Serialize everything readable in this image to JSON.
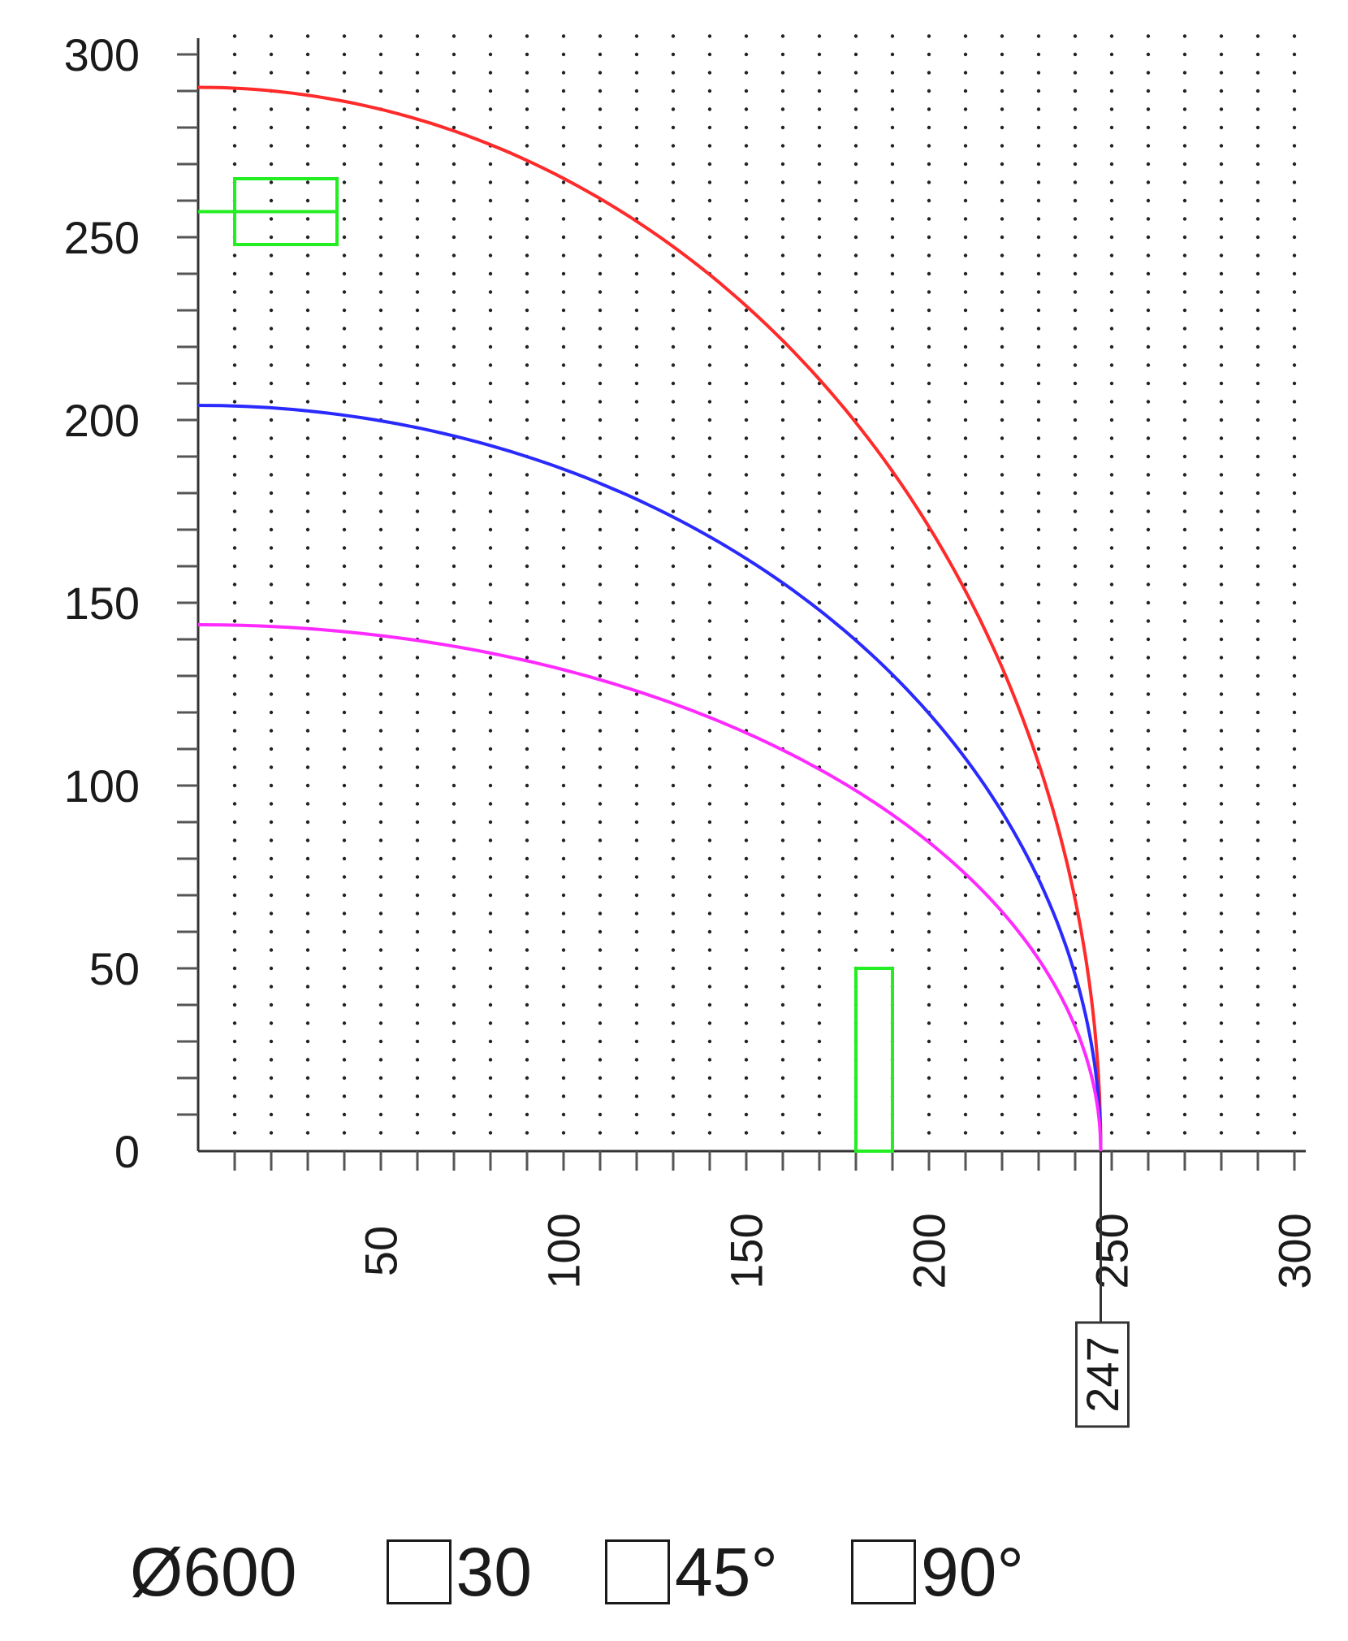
{
  "chart_data": {
    "type": "line",
    "xlim": [
      0,
      300
    ],
    "ylim": [
      0,
      300
    ],
    "x_ticks": [
      50,
      100,
      150,
      200,
      250,
      300
    ],
    "y_ticks": [
      0,
      50,
      100,
      150,
      200,
      250,
      300
    ],
    "minor_step": 10,
    "grid": "dotted",
    "series": [
      {
        "color": "#ff2a2a",
        "x_end": 247,
        "y_start": 291
      },
      {
        "color": "#2a2aff",
        "x_end": 247,
        "y_start": 204
      },
      {
        "color": "#ff2aff",
        "x_end": 247,
        "y_start": 144
      }
    ],
    "markers": [
      {
        "shape": "rect",
        "color": "#22ee22",
        "x0": 10,
        "x1": 38,
        "y0": 248,
        "y1": 266,
        "center_line_y": 257
      },
      {
        "shape": "rect",
        "color": "#22ee22",
        "x0": 180,
        "x1": 190,
        "y0": 0,
        "y1": 50
      }
    ],
    "callout": {
      "x": 247,
      "label": "247"
    }
  },
  "legend": {
    "diameter_label": "Ø600",
    "items": [
      {
        "label": "30"
      },
      {
        "label": "45°"
      },
      {
        "label": "90°"
      }
    ]
  }
}
